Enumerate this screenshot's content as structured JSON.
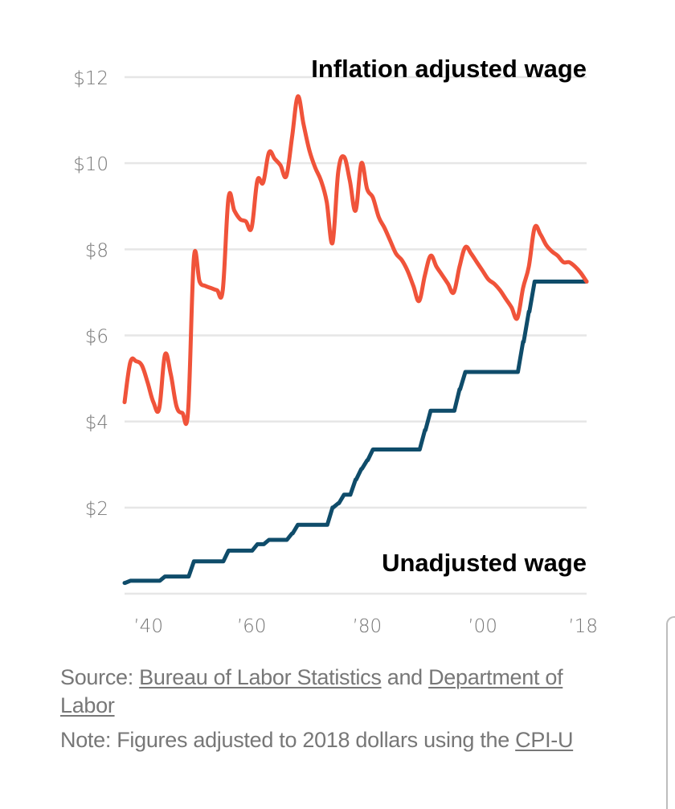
{
  "chart_data": {
    "type": "line",
    "title": "",
    "xlabel": "",
    "ylabel": "",
    "xlim": [
      1938,
      2018
    ],
    "ylim": [
      0,
      12
    ],
    "grid": true,
    "y_ticks": [
      {
        "value": 12,
        "label": "$12"
      },
      {
        "value": 10,
        "label": "$10"
      },
      {
        "value": 8,
        "label": "$8"
      },
      {
        "value": 6,
        "label": "$6"
      },
      {
        "value": 4,
        "label": "$4"
      },
      {
        "value": 2,
        "label": "$2"
      },
      {
        "value": 0,
        "label": ""
      }
    ],
    "x_ticks": [
      {
        "value": 1940,
        "label": "’40"
      },
      {
        "value": 1960,
        "label": "’60"
      },
      {
        "value": 1980,
        "label": "’80"
      },
      {
        "value": 2000,
        "label": "’00"
      },
      {
        "value": 2018,
        "label": "’18"
      }
    ],
    "series": [
      {
        "name": "Inflation adjusted wage",
        "label_placement": "top-right",
        "color": "#f0533a",
        "x": [
          1938,
          1939,
          1940,
          1941,
          1942,
          1943,
          1944,
          1945,
          1946,
          1947,
          1948,
          1949,
          1950,
          1951,
          1952,
          1953,
          1954,
          1955,
          1956,
          1957,
          1958,
          1959,
          1960,
          1961,
          1962,
          1963,
          1964,
          1965,
          1966,
          1967,
          1968,
          1969,
          1970,
          1971,
          1972,
          1973,
          1974,
          1975,
          1976,
          1977,
          1978,
          1979,
          1980,
          1981,
          1982,
          1983,
          1984,
          1985,
          1986,
          1987,
          1988,
          1989,
          1990,
          1991,
          1992,
          1993,
          1994,
          1995,
          1996,
          1997,
          1998,
          1999,
          2000,
          2001,
          2002,
          2003,
          2004,
          2005,
          2006,
          2007,
          2008,
          2009,
          2010,
          2011,
          2012,
          2013,
          2014,
          2015,
          2016,
          2017,
          2018
        ],
        "values": [
          4.45,
          5.38,
          5.4,
          5.3,
          4.9,
          4.45,
          4.3,
          5.55,
          5.1,
          4.35,
          4.2,
          4.25,
          7.8,
          7.25,
          7.15,
          7.1,
          7.05,
          7.05,
          9.2,
          8.9,
          8.7,
          8.65,
          8.5,
          9.6,
          9.55,
          10.25,
          10.1,
          9.95,
          9.7,
          10.6,
          11.55,
          10.9,
          10.3,
          9.9,
          9.6,
          9.1,
          8.15,
          9.8,
          10.15,
          9.6,
          8.9,
          10.0,
          9.4,
          9.2,
          8.75,
          8.5,
          8.2,
          7.9,
          7.75,
          7.5,
          7.15,
          6.8,
          7.4,
          7.85,
          7.6,
          7.4,
          7.2,
          7.0,
          7.6,
          8.05,
          7.9,
          7.7,
          7.5,
          7.3,
          7.2,
          7.05,
          6.85,
          6.65,
          6.4,
          7.1,
          7.6,
          8.5,
          8.35,
          8.1,
          7.95,
          7.85,
          7.7,
          7.7,
          7.6,
          7.45,
          7.25
        ]
      },
      {
        "name": "Unadjusted wage",
        "label_placement": "bottom-right",
        "color": "#0f4c6a",
        "step": true,
        "x": [
          1938,
          1939,
          1945,
          1950,
          1956,
          1961,
          1963,
          1967,
          1968,
          1974,
          1975,
          1976,
          1978,
          1979,
          1980,
          1981,
          1990,
          1991,
          1996,
          1997,
          2007,
          2008,
          2009,
          2018
        ],
        "values": [
          0.25,
          0.3,
          0.4,
          0.75,
          1.0,
          1.15,
          1.25,
          1.4,
          1.6,
          2.0,
          2.1,
          2.3,
          2.65,
          2.9,
          3.1,
          3.35,
          3.8,
          4.25,
          4.75,
          5.15,
          5.85,
          6.55,
          7.25,
          7.25
        ]
      }
    ]
  },
  "footer": {
    "source_prefix": "Source: ",
    "source_link_1": "Bureau of Labor Statistics",
    "source_and": " and ",
    "source_link_2": "Department of Labor",
    "note_prefix": "Note: Figures adjusted to 2018 dollars using the ",
    "note_link": "CPI-U"
  }
}
